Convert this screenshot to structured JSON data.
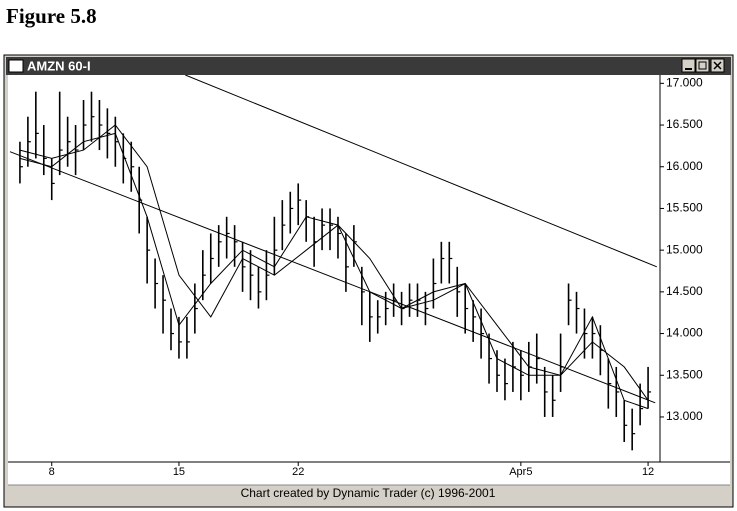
{
  "figure_title": "Figure 5.8",
  "window_title": "AMZN 60-I",
  "footer": "Chart created by Dynamic Trader (c) 1996-2001",
  "chart_data": {
    "type": "hlc",
    "x": [
      0,
      1,
      2,
      3,
      4,
      5,
      6,
      7,
      8,
      9,
      10,
      11,
      12,
      13,
      14,
      15,
      16,
      17,
      18,
      19,
      20,
      21,
      22,
      23,
      24,
      25,
      26,
      27,
      28,
      29,
      30,
      31,
      32,
      33,
      34,
      35,
      36,
      37,
      38,
      39,
      40,
      41,
      42,
      43,
      44,
      45,
      46,
      47,
      48,
      49,
      50,
      51,
      52,
      53,
      54,
      55,
      56,
      57,
      58,
      59,
      60,
      61,
      62,
      63,
      64,
      65,
      66,
      67,
      68,
      69,
      70,
      71,
      72,
      73,
      74,
      75,
      76,
      77,
      78,
      79
    ],
    "high": [
      16.3,
      16.6,
      16.9,
      16.5,
      16.1,
      16.9,
      16.6,
      16.5,
      16.8,
      16.9,
      16.8,
      16.7,
      16.6,
      16.4,
      16.3,
      16.0,
      15.4,
      14.9,
      14.7,
      14.3,
      14.2,
      14.2,
      14.6,
      15.0,
      15.2,
      15.3,
      15.4,
      15.3,
      15.1,
      15.0,
      14.8,
      15.0,
      15.4,
      15.6,
      15.7,
      15.8,
      15.6,
      15.4,
      15.5,
      15.5,
      15.4,
      15.2,
      15.3,
      14.8,
      14.5,
      14.4,
      14.5,
      14.6,
      14.5,
      14.6,
      14.6,
      14.5,
      14.9,
      15.1,
      15.1,
      14.8,
      14.6,
      14.4,
      14.3,
      14.0,
      13.8,
      13.7,
      13.9,
      13.8,
      13.9,
      14.0,
      13.6,
      13.5,
      14.0,
      14.6,
      14.5,
      14.3,
      14.2,
      14.1,
      13.7,
      13.6,
      13.2,
      13.1,
      13.4,
      13.6
    ],
    "low": [
      15.8,
      16.0,
      16.1,
      15.9,
      15.6,
      15.9,
      16.0,
      15.9,
      16.2,
      16.3,
      16.2,
      16.1,
      16.0,
      15.8,
      15.7,
      15.2,
      14.6,
      14.3,
      14.0,
      13.8,
      13.7,
      13.7,
      14.0,
      14.4,
      14.6,
      14.8,
      14.9,
      14.8,
      14.5,
      14.4,
      14.3,
      14.4,
      14.7,
      15.0,
      15.2,
      15.3,
      15.1,
      14.8,
      15.0,
      15.0,
      14.9,
      14.5,
      14.8,
      14.1,
      13.9,
      14.0,
      14.1,
      14.2,
      14.1,
      14.2,
      14.2,
      14.1,
      14.3,
      14.6,
      14.6,
      14.2,
      14.0,
      13.9,
      13.7,
      13.4,
      13.3,
      13.2,
      13.3,
      13.2,
      13.3,
      13.4,
      13.0,
      13.0,
      13.3,
      14.1,
      14.0,
      13.7,
      13.7,
      13.5,
      13.1,
      13.0,
      12.7,
      12.6,
      12.9,
      13.1
    ],
    "close": [
      16.0,
      16.3,
      16.4,
      16.1,
      15.8,
      16.2,
      16.3,
      16.2,
      16.5,
      16.6,
      16.5,
      16.4,
      16.3,
      16.1,
      16.0,
      15.6,
      15.0,
      14.6,
      14.4,
      14.0,
      13.9,
      13.9,
      14.3,
      14.7,
      14.9,
      15.1,
      15.2,
      15.1,
      14.8,
      14.7,
      14.5,
      14.7,
      15.0,
      15.3,
      15.5,
      15.6,
      15.4,
      15.1,
      15.3,
      15.3,
      15.2,
      14.8,
      15.1,
      14.5,
      14.2,
      14.2,
      14.3,
      14.4,
      14.3,
      14.4,
      14.4,
      14.3,
      14.6,
      14.9,
      14.9,
      14.5,
      14.3,
      14.2,
      14.0,
      13.7,
      13.5,
      13.4,
      13.6,
      13.5,
      13.6,
      13.7,
      13.3,
      13.2,
      13.6,
      14.4,
      14.3,
      14.0,
      14.0,
      13.8,
      13.4,
      13.3,
      12.9,
      12.8,
      13.1,
      13.3
    ],
    "lines": [
      {
        "x": [
          0,
          4,
          8,
          12,
          16,
          20,
          24,
          28,
          32,
          36,
          40,
          44,
          48,
          52,
          56,
          60,
          64,
          68,
          72,
          76,
          79
        ],
        "values": [
          16.1,
          16.0,
          16.3,
          16.4,
          15.4,
          14.1,
          14.6,
          15.0,
          14.8,
          15.4,
          15.3,
          14.5,
          14.3,
          14.5,
          14.6,
          13.7,
          13.5,
          13.5,
          14.2,
          13.2,
          13.1
        ]
      },
      {
        "x": [
          0,
          4,
          8,
          12,
          16,
          20,
          24,
          28,
          32,
          36,
          40,
          44,
          48,
          52,
          56,
          60,
          64,
          68,
          72,
          76,
          79
        ],
        "values": [
          16.2,
          16.1,
          16.2,
          16.5,
          16.0,
          14.7,
          14.2,
          14.9,
          14.7,
          15.0,
          15.3,
          14.9,
          14.3,
          14.4,
          14.6,
          14.1,
          13.6,
          13.5,
          13.9,
          13.6,
          13.2
        ]
      }
    ],
    "trendlines": [
      {
        "x": [
          -1.25,
          79.9
        ],
        "values": [
          16.18,
          13.17
        ]
      },
      {
        "x": [
          20.8,
          80.1
        ],
        "values": [
          17.1,
          14.8
        ]
      }
    ],
    "color": "#000000",
    "xlim": [
      -1.5,
      80.5
    ],
    "xticks": [
      {
        "value": 4,
        "label": "8"
      },
      {
        "value": 20,
        "label": "15"
      },
      {
        "value": 35,
        "label": "22"
      },
      {
        "value": 63,
        "label": "Apr5"
      },
      {
        "value": 79,
        "label": "12"
      }
    ],
    "ylim": [
      12.46,
      17.1
    ],
    "yticks": [
      {
        "value": 13,
        "label": "13.000"
      },
      {
        "value": 13.5,
        "label": "13.500"
      },
      {
        "value": 14,
        "label": "14.000"
      },
      {
        "value": 14.5,
        "label": "14.500"
      },
      {
        "value": 15,
        "label": "15.000"
      },
      {
        "value": 15.5,
        "label": "15.500"
      },
      {
        "value": 16,
        "label": "16.000"
      },
      {
        "value": 16.5,
        "label": "16.500"
      },
      {
        "value": 17,
        "label": "17.000"
      }
    ]
  }
}
